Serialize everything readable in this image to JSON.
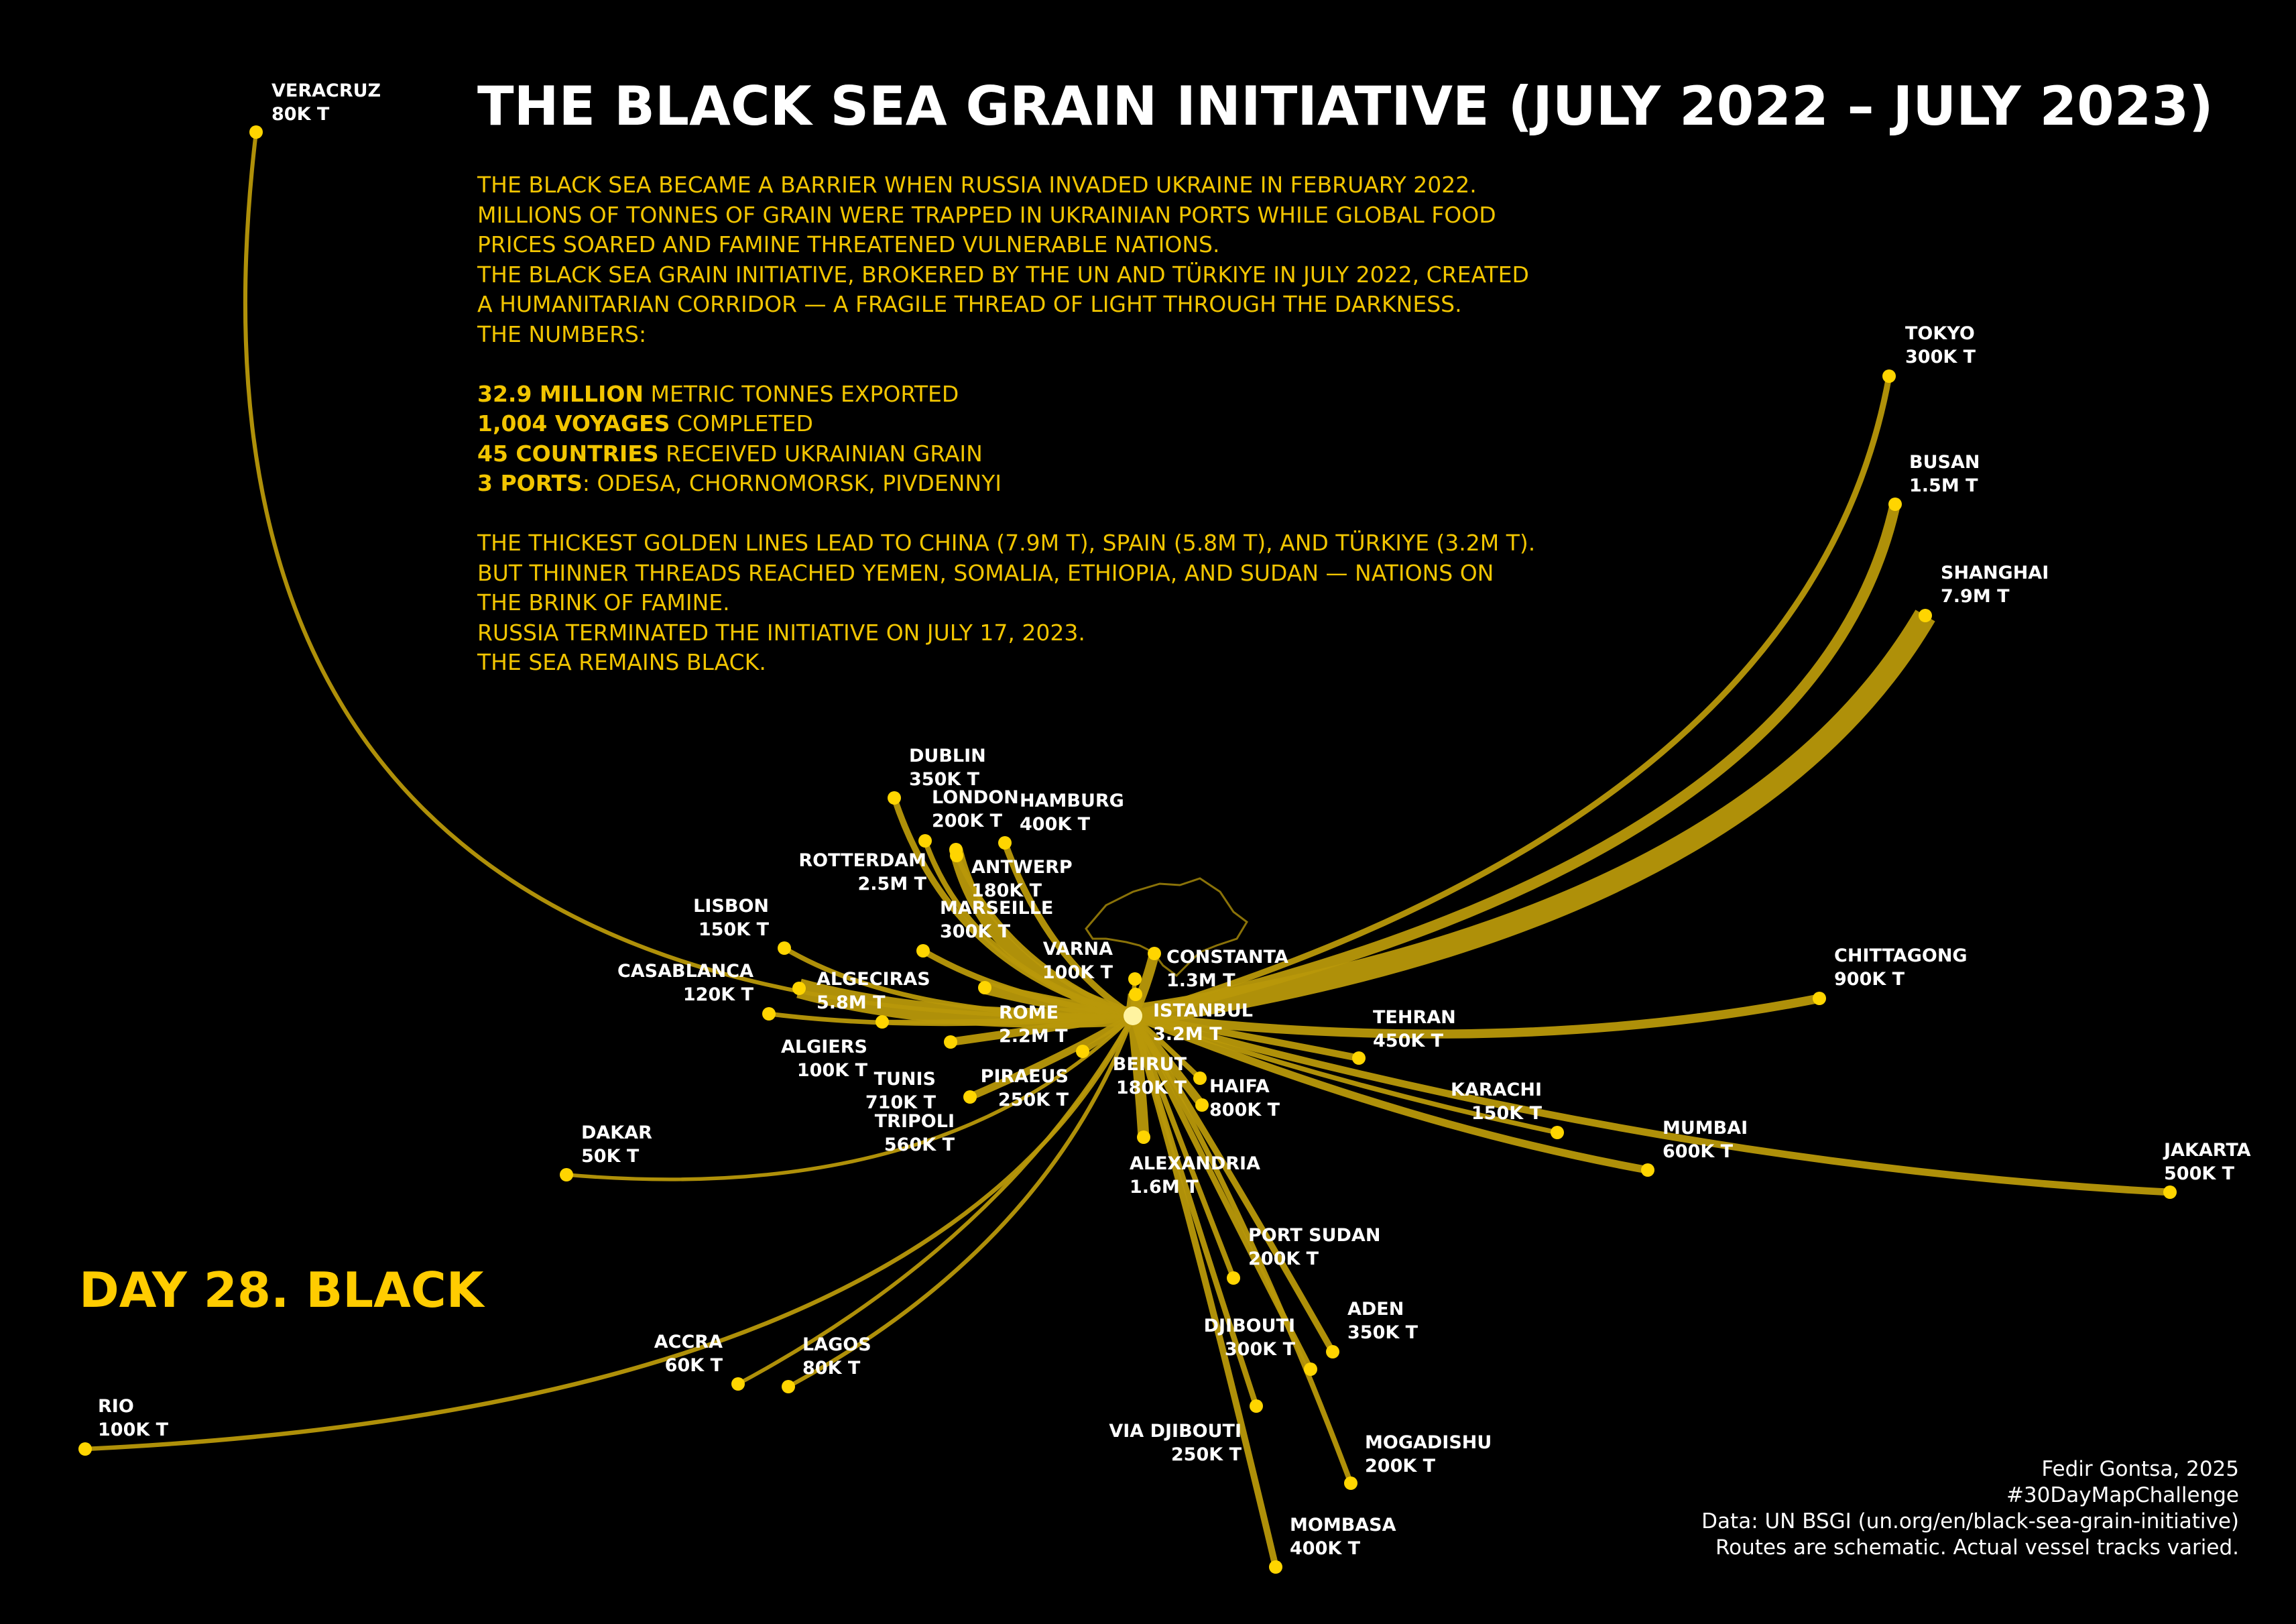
{
  "title": "THE BLACK SEA GRAIN INITIATIVE (JULY 2022 – JULY 2023)",
  "intro": [
    "THE BLACK SEA BECAME A BARRIER WHEN RUSSIA INVADED UKRAINE IN FEBRUARY 2022.",
    "MILLIONS OF TONNES OF GRAIN WERE TRAPPED IN UKRAINIAN PORTS WHILE GLOBAL FOOD",
    "PRICES SOARED AND FAMINE THREATENED VULNERABLE NATIONS.",
    "THE BLACK SEA GRAIN INITIATIVE, BROKERED BY THE UN AND TÜRKIYE IN JULY 2022, CREATED",
    "A HUMANITARIAN CORRIDOR — A FRAGILE THREAD OF LIGHT THROUGH THE DARKNESS.",
    "THE NUMBERS:"
  ],
  "stats": [
    {
      "bold": "32.9 MILLION",
      "text": " METRIC TONNES EXPORTED"
    },
    {
      "bold": "1,004 VOYAGES",
      "text": " COMPLETED"
    },
    {
      "bold": "45 COUNTRIES",
      "text": " RECEIVED UKRAINIAN GRAIN"
    },
    {
      "bold": "3 PORTS",
      "text": ": ODESA, CHORNOMORSK, PIVDENNYI"
    }
  ],
  "outro": [
    "THE THICKEST GOLDEN LINES LEAD TO CHINA (7.9M T), SPAIN (5.8M T), AND TÜRKIYE (3.2M T).",
    "BUT THINNER THREADS REACHED YEMEN, SOMALIA, ETHIOPIA, AND SUDAN — NATIONS ON",
    "THE BRINK OF FAMINE.",
    "RUSSIA TERMINATED THE INITIATIVE ON JULY 17, 2023.",
    "THE SEA REMAINS BLACK."
  ],
  "day_label": "DAY 28. BLACK",
  "credits": [
    "Fedir Gontsa, 2025",
    "#30DayMapChallenge",
    "Data: UN BSGI (un.org/en/black-sea-grain-initiative)",
    "Routes are schematic. Actual vessel tracks varied."
  ],
  "colors": {
    "background": "#000000",
    "route": "#b8980a",
    "point": "#ffd500",
    "origin": "#fff3a0",
    "title": "#ffffff",
    "text": "#f2c500"
  },
  "origin": "Odesa",
  "destinations": [
    {
      "id": "veracruz",
      "name": "VERACRUZ",
      "tonnage": "80K T",
      "tonnes": 80000
    },
    {
      "id": "tokyo",
      "name": "TOKYO",
      "tonnage": "300K T",
      "tonnes": 300000
    },
    {
      "id": "busan",
      "name": "BUSAN",
      "tonnage": "1.5M T",
      "tonnes": 1500000
    },
    {
      "id": "shanghai",
      "name": "SHANGHAI",
      "tonnage": "7.9M T",
      "tonnes": 7900000
    },
    {
      "id": "chittagong",
      "name": "CHITTAGONG",
      "tonnage": "900K T",
      "tonnes": 900000
    },
    {
      "id": "tehran",
      "name": "TEHRAN",
      "tonnage": "450K T",
      "tonnes": 450000
    },
    {
      "id": "karachi",
      "name": "KARACHI",
      "tonnage": "150K T",
      "tonnes": 150000
    },
    {
      "id": "mumbai",
      "name": "MUMBAI",
      "tonnage": "600K T",
      "tonnes": 600000
    },
    {
      "id": "jakarta",
      "name": "JAKARTA",
      "tonnage": "500K T",
      "tonnes": 500000
    },
    {
      "id": "dublin",
      "name": "DUBLIN",
      "tonnage": "350K T",
      "tonnes": 350000
    },
    {
      "id": "london",
      "name": "LONDON",
      "tonnage": "200K T",
      "tonnes": 200000
    },
    {
      "id": "hamburg",
      "name": "HAMBURG",
      "tonnage": "400K T",
      "tonnes": 400000
    },
    {
      "id": "rotterdam",
      "name": "ROTTERDAM",
      "tonnage": "2.5M T",
      "tonnes": 2500000
    },
    {
      "id": "antwerp",
      "name": "ANTWERP",
      "tonnage": "180K T",
      "tonnes": 180000
    },
    {
      "id": "marseille",
      "name": "MARSEILLE",
      "tonnage": "300K T",
      "tonnes": 300000
    },
    {
      "id": "lisbon",
      "name": "LISBON",
      "tonnage": "150K T",
      "tonnes": 150000
    },
    {
      "id": "casablanca",
      "name": "CASABLANCA",
      "tonnage": "120K T",
      "tonnes": 120000
    },
    {
      "id": "algeciras",
      "name": "ALGECIRAS",
      "tonnage": "5.8M T",
      "tonnes": 5800000
    },
    {
      "id": "varna",
      "name": "VARNA",
      "tonnage": "100K T",
      "tonnes": 100000
    },
    {
      "id": "constanta",
      "name": "CONSTANTA",
      "tonnage": "1.3M T",
      "tonnes": 1300000
    },
    {
      "id": "rome",
      "name": "ROME",
      "tonnage": "2.2M T",
      "tonnes": 2200000
    },
    {
      "id": "istanbul",
      "name": "ISTANBUL",
      "tonnage": "3.2M T",
      "tonnes": 3200000
    },
    {
      "id": "algiers",
      "name": "ALGIERS",
      "tonnage": "100K T",
      "tonnes": 100000
    },
    {
      "id": "tunis",
      "name": "TUNIS",
      "tonnage": "710K T",
      "tonnes": 710000
    },
    {
      "id": "piraeus",
      "name": "PIRAEUS",
      "tonnage": "250K T",
      "tonnes": 250000
    },
    {
      "id": "beirut",
      "name": "BEIRUT",
      "tonnage": "180K T",
      "tonnes": 180000
    },
    {
      "id": "haifa",
      "name": "HAIFA",
      "tonnage": "800K T",
      "tonnes": 800000
    },
    {
      "id": "tripoli",
      "name": "TRIPOLI",
      "tonnage": "560K T",
      "tonnes": 560000
    },
    {
      "id": "alexandria",
      "name": "ALEXANDRIA",
      "tonnage": "1.6M T",
      "tonnes": 1600000
    },
    {
      "id": "dakar",
      "name": "DAKAR",
      "tonnage": "50K T",
      "tonnes": 50000
    },
    {
      "id": "port-sudan",
      "name": "PORT SUDAN",
      "tonnage": "200K T",
      "tonnes": 200000
    },
    {
      "id": "aden",
      "name": "ADEN",
      "tonnage": "350K T",
      "tonnes": 350000
    },
    {
      "id": "djibouti",
      "name": "DJIBOUTI",
      "tonnage": "300K T",
      "tonnes": 300000
    },
    {
      "id": "accra",
      "name": "ACCRA",
      "tonnage": "60K T",
      "tonnes": 60000
    },
    {
      "id": "lagos",
      "name": "LAGOS",
      "tonnage": "80K T",
      "tonnes": 80000
    },
    {
      "id": "via-djibouti",
      "name": "VIA DJIBOUTI",
      "tonnage": "250K T",
      "tonnes": 250000
    },
    {
      "id": "mogadishu",
      "name": "MOGADISHU",
      "tonnage": "200K T",
      "tonnes": 200000
    },
    {
      "id": "mombasa",
      "name": "MOMBASA",
      "tonnage": "400K T",
      "tonnes": 400000
    },
    {
      "id": "rio",
      "name": "RIO",
      "tonnage": "100K T",
      "tonnes": 100000
    }
  ]
}
